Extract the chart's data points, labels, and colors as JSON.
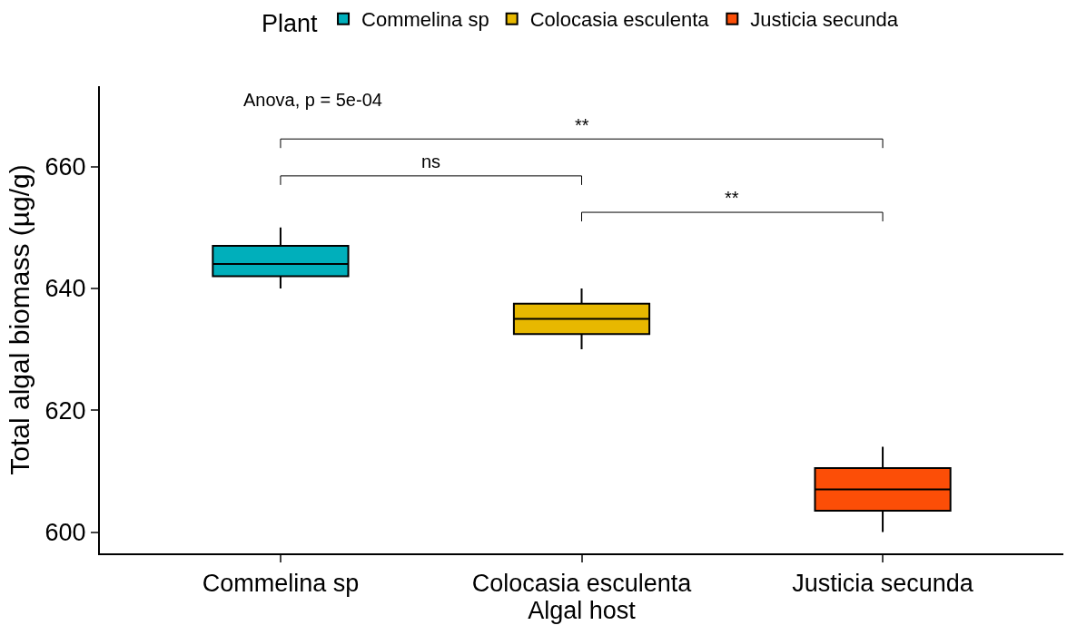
{
  "chart_data": {
    "type": "box",
    "xlabel": "Algal host",
    "ylabel": "Total algal biomass (µg/g)",
    "legend_title": "Plant",
    "legend": "top",
    "grid": false,
    "categories": [
      "Commelina sp",
      "Colocasia esculenta",
      "Justicia secunda"
    ],
    "ylim": [
      596.5,
      673.2
    ],
    "yticks": [
      600,
      620,
      640,
      660
    ],
    "series": [
      {
        "name": "Commelina sp",
        "color": "#00afbb",
        "boxes": [
          {
            "low": 640,
            "q1": 642,
            "median": 644,
            "q3": 647,
            "high": 650
          },
          null,
          null
        ]
      },
      {
        "name": "Colocasia esculenta",
        "color": "#e7b800",
        "boxes": [
          null,
          {
            "low": 630,
            "q1": 632.5,
            "median": 635,
            "q3": 637.5,
            "high": 640
          },
          null
        ]
      },
      {
        "name": "Justicia secunda",
        "color": "#fc4e07",
        "boxes": [
          null,
          null,
          {
            "low": 600,
            "q1": 603.5,
            "median": 607,
            "q3": 610.5,
            "high": 614
          }
        ]
      }
    ],
    "annotations": [
      "Anova, p = 5e-04",
      "**",
      "ns",
      "**"
    ]
  }
}
